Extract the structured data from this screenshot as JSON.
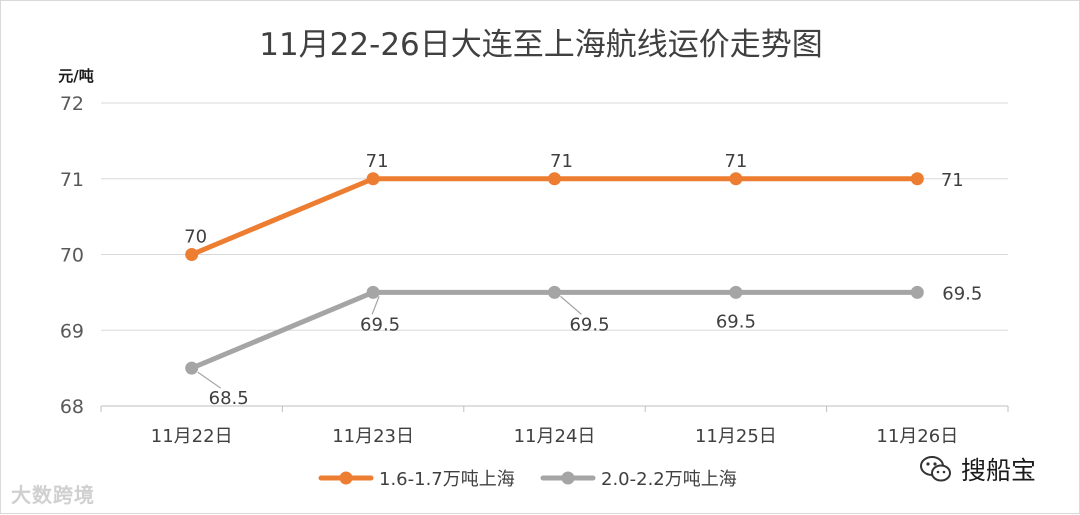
{
  "chart_data": {
    "type": "line",
    "title": "11月22-26日大连至上海航线运价走势图",
    "ylabel": "元/吨",
    "xlabel": "",
    "ylim": [
      68,
      72
    ],
    "yticks": [
      68,
      69,
      70,
      71,
      72
    ],
    "grid": true,
    "legend": "bottom",
    "categories": [
      "11月22日",
      "11月23日",
      "11月24日",
      "11月25日",
      "11月26日"
    ],
    "series": [
      {
        "name": "1.6-1.7万吨上海",
        "color": "#ED7D31",
        "values": [
          70,
          71,
          71,
          71,
          71
        ],
        "labels": [
          "70",
          "71",
          "71",
          "71",
          "71"
        ]
      },
      {
        "name": "2.0-2.2万吨上海",
        "color": "#A5A5A5",
        "values": [
          68.5,
          69.5,
          69.5,
          69.5,
          69.5
        ],
        "labels": [
          "68.5",
          "69.5",
          "69.5",
          "69.5",
          "69.5"
        ]
      }
    ]
  },
  "watermarks": {
    "left": "大数跨境",
    "right": "搜船宝"
  }
}
